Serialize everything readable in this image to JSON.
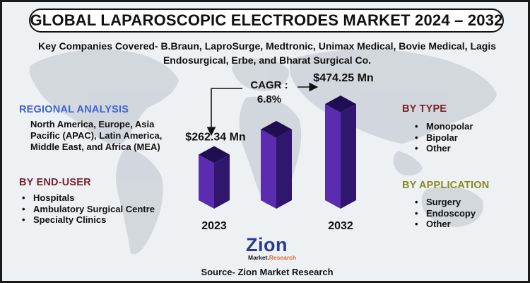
{
  "title": "GLOBAL LAPAROSCOPIC ELECTRODES MARKET 2024 – 2032",
  "companies": "Key Companies Covered- B.Braun, LaproSurge, Medtronic, Unimax Medical, Bovie Medical, Lagis Endosurgical, Erbe, and Bharat Surgical Co.",
  "regional": {
    "heading": "REGIONAL ANALYSIS",
    "text": "North America, Europe, Asia Pacific (APAC), Latin America, Middle East, and Africa (MEA)"
  },
  "end_user": {
    "heading": "BY END-USER",
    "items": [
      "Hospitals",
      "Ambulatory Surgical Centre",
      "Specialty Clinics"
    ]
  },
  "by_type": {
    "heading": "BY TYPE",
    "items": [
      "Monopolar",
      "Bipolar",
      "Other"
    ]
  },
  "by_application": {
    "heading": "BY APPLICATION",
    "items": [
      "Surgery",
      "Endoscopy",
      "Other"
    ]
  },
  "cagr": {
    "label": "CAGR :",
    "value": "6.8%"
  },
  "colors": {
    "bar_front": "#5b2bb0",
    "bar_side": "#2f176e",
    "bar_top": "#1f0f52",
    "regional_heading": "#3d63d6",
    "end_user_heading": "#7a1f2a",
    "type_heading": "#7a1f2a",
    "application_heading": "#8a8a1c",
    "logo_blue": "#2b3a8c",
    "logo_orange": "#e0662a"
  },
  "logo": {
    "main": "Zion",
    "sub_left": "Market.",
    "sub_right": "Research"
  },
  "source": "Source- Zion Market Research",
  "chart_data": {
    "type": "bar",
    "title": "",
    "categories": [
      "2023",
      "",
      "2032"
    ],
    "values": [
      262.34,
      368,
      474.25
    ],
    "value_labels": [
      "$262.34 Mn",
      "",
      "$474.25 Mn"
    ],
    "unit": "Mn",
    "ylim": [
      0,
      500
    ],
    "grid": false,
    "legend": "none"
  }
}
